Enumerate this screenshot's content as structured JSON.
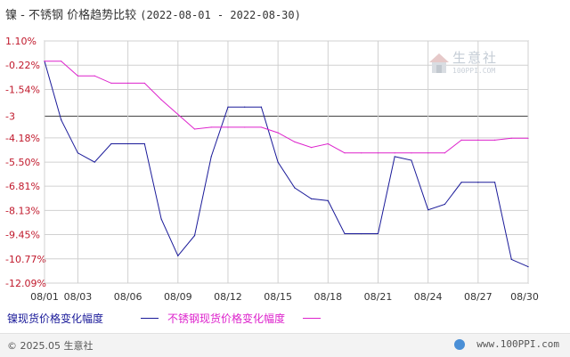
{
  "title": {
    "text": "镍 - 不锈钢 价格趋势比较",
    "range": "(2022-08-01 - 2022-08-30)"
  },
  "watermark": {
    "text": "生意社",
    "url": "100PPI.COM"
  },
  "footer": {
    "copyright": "© 2025.05 生意社",
    "site": "www.100PPI.com"
  },
  "colors": {
    "nickel": "#1a1a99",
    "stainless": "#dd22cc",
    "axis_label": "#c0182b",
    "grid": "#d0d0d0",
    "reference": "#444444"
  },
  "chart_data": {
    "type": "line",
    "title": "镍 - 不锈钢 价格趋势比较",
    "xlabel": "",
    "ylabel": "",
    "x": [
      "08/01",
      "08/02",
      "08/03",
      "08/04",
      "08/05",
      "08/06",
      "08/07",
      "08/08",
      "08/09",
      "08/10",
      "08/11",
      "08/12",
      "08/13",
      "08/14",
      "08/15",
      "08/16",
      "08/17",
      "08/18",
      "08/19",
      "08/20",
      "08/21",
      "08/22",
      "08/23",
      "08/24",
      "08/25",
      "08/26",
      "08/27",
      "08/28",
      "08/29",
      "08/30"
    ],
    "x_tick_labels": [
      "08/01",
      "08/03",
      "08/06",
      "08/09",
      "08/12",
      "08/15",
      "08/18",
      "08/21",
      "08/24",
      "08/27",
      "08/30"
    ],
    "y_tick_labels": [
      "1.10%",
      "-0.22%",
      "-1.54%",
      "-3",
      "-4.18%",
      "-5.50%",
      "-6.81%",
      "-8.13%",
      "-9.45%",
      "-10.77%",
      "-12.09%"
    ],
    "y_tick_values": [
      1.1,
      -0.22,
      -1.54,
      -3,
      -4.18,
      -5.5,
      -6.81,
      -8.13,
      -9.45,
      -10.77,
      -12.09
    ],
    "ylim": [
      -12.09,
      1.1
    ],
    "reference_line": -3,
    "grid": true,
    "legend_position": "bottom-left",
    "series": [
      {
        "name": "镍现货价格变化幅度",
        "points": [
          [
            "08/01",
            0.0
          ],
          [
            "08/02",
            -3.2
          ],
          [
            "08/03",
            -5.0
          ],
          [
            "08/04",
            -5.5
          ],
          [
            "08/05",
            -4.5
          ],
          [
            "08/06",
            -4.5
          ],
          [
            "08/07",
            -4.5
          ],
          [
            "08/08",
            -8.6
          ],
          [
            "08/09",
            -10.6
          ],
          [
            "08/10",
            -9.5
          ],
          [
            "08/11",
            -5.2
          ],
          [
            "08/12",
            -2.5
          ],
          [
            "08/13",
            -2.5
          ],
          [
            "08/14",
            -2.5
          ],
          [
            "08/15",
            -5.5
          ],
          [
            "08/16",
            -6.9
          ],
          [
            "08/17",
            -7.5
          ],
          [
            "08/18",
            -7.6
          ],
          [
            "08/19",
            -9.4
          ],
          [
            "08/20",
            -9.4
          ],
          [
            "08/21",
            -9.4
          ],
          [
            "08/22",
            -5.2
          ],
          [
            "08/23",
            -5.4
          ],
          [
            "08/24",
            -8.1
          ],
          [
            "08/25",
            -7.8
          ],
          [
            "08/26",
            -6.6
          ],
          [
            "08/27",
            -6.6
          ],
          [
            "08/28",
            -6.6
          ],
          [
            "08/29",
            -10.8
          ],
          [
            "08/30",
            -11.2
          ]
        ]
      },
      {
        "name": "不锈钢现货价格变化幅度",
        "points": [
          [
            "08/01",
            0.0
          ],
          [
            "08/02",
            0.0
          ],
          [
            "08/03",
            -0.8
          ],
          [
            "08/04",
            -0.8
          ],
          [
            "08/05",
            -1.2
          ],
          [
            "08/06",
            -1.2
          ],
          [
            "08/07",
            -1.2
          ],
          [
            "08/08",
            -2.1
          ],
          [
            "08/09",
            -2.9
          ],
          [
            "08/10",
            -3.7
          ],
          [
            "08/11",
            -3.6
          ],
          [
            "08/12",
            -3.6
          ],
          [
            "08/13",
            -3.6
          ],
          [
            "08/14",
            -3.6
          ],
          [
            "08/15",
            -3.9
          ],
          [
            "08/16",
            -4.4
          ],
          [
            "08/17",
            -4.7
          ],
          [
            "08/18",
            -4.5
          ],
          [
            "08/19",
            -5.0
          ],
          [
            "08/20",
            -5.0
          ],
          [
            "08/21",
            -5.0
          ],
          [
            "08/22",
            -5.0
          ],
          [
            "08/23",
            -5.0
          ],
          [
            "08/24",
            -5.0
          ],
          [
            "08/25",
            -5.0
          ],
          [
            "08/26",
            -4.3
          ],
          [
            "08/27",
            -4.3
          ],
          [
            "08/28",
            -4.3
          ],
          [
            "08/29",
            -4.2
          ],
          [
            "08/30",
            -4.2
          ]
        ]
      }
    ]
  }
}
